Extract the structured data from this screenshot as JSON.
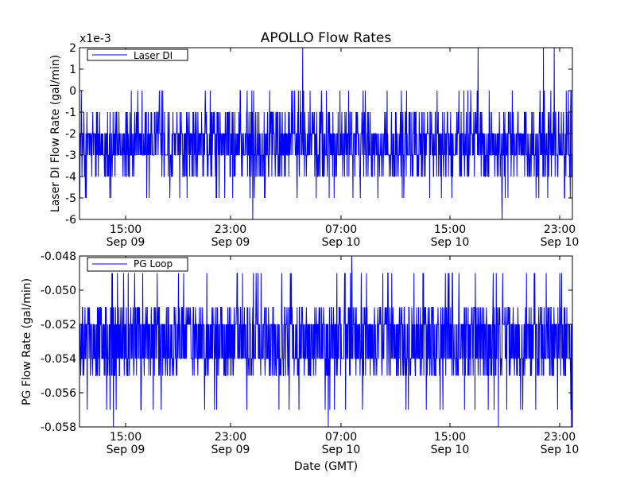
{
  "figure": {
    "title": "APOLLO Flow Rates",
    "xlabel": "Date (GMT)"
  },
  "chart_data": [
    {
      "type": "line",
      "ylabel": "Laser DI Flow Rate (gal/min)",
      "y_offset_label": "x1e-3",
      "ylim": [
        -6,
        2
      ],
      "yticks": [
        -6,
        -5,
        -4,
        -3,
        -2,
        -1,
        0,
        1,
        2
      ],
      "ytick_labels": [
        "-6",
        "-5",
        "-4",
        "-3",
        "-2",
        "-1",
        "0",
        "1",
        "2"
      ],
      "xticks": [
        {
          "time": "15:00",
          "date": "Sep 09"
        },
        {
          "time": "23:00",
          "date": "Sep 09"
        },
        {
          "time": "07:00",
          "date": "Sep 10"
        },
        {
          "time": "15:00",
          "date": "Sep 10"
        },
        {
          "time": "23:00",
          "date": "Sep 10"
        }
      ],
      "legend": {
        "label": "Laser DI",
        "location": "top-left"
      },
      "color": "#0000ff",
      "series": [
        {
          "name": "Laser DI",
          "typical_range": [
            -3,
            -2
          ],
          "dense_band": [
            -4,
            -1
          ],
          "frequent_spikes": [
            -5,
            0
          ],
          "rare_extremes": [
            -6,
            2
          ]
        }
      ]
    },
    {
      "type": "line",
      "ylabel": "PG Flow Rate (gal/min)",
      "ylim": [
        -0.058,
        -0.048
      ],
      "yticks": [
        -0.058,
        -0.056,
        -0.054,
        -0.052,
        -0.05,
        -0.048
      ],
      "ytick_labels": [
        "-0.058",
        "-0.056",
        "-0.054",
        "-0.052",
        "-0.050",
        "-0.048"
      ],
      "xticks": [
        {
          "time": "15:00",
          "date": "Sep 09"
        },
        {
          "time": "23:00",
          "date": "Sep 09"
        },
        {
          "time": "07:00",
          "date": "Sep 10"
        },
        {
          "time": "15:00",
          "date": "Sep 10"
        },
        {
          "time": "23:00",
          "date": "Sep 10"
        }
      ],
      "legend": {
        "label": "PG Loop",
        "location": "top-left"
      },
      "color": "#0000ff",
      "series": [
        {
          "name": "PG Loop",
          "typical_range": [
            -0.054,
            -0.052
          ],
          "dense_band": [
            -0.055,
            -0.051
          ],
          "frequent_spikes": [
            -0.057,
            -0.049
          ],
          "rare_extremes": [
            -0.058,
            -0.048
          ]
        }
      ]
    }
  ]
}
